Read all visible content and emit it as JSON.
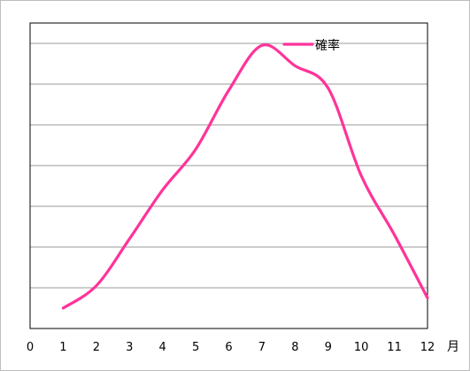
{
  "chart_data": {
    "type": "line",
    "x": [
      1,
      2,
      3,
      4,
      5,
      6,
      7,
      8,
      9,
      10,
      11,
      12
    ],
    "series": [
      {
        "name": "確率",
        "color": "#ff3399",
        "values": [
          0.5,
          1.05,
          2.2,
          3.4,
          4.4,
          5.85,
          6.95,
          6.45,
          5.9,
          3.75,
          2.3,
          0.75
        ]
      }
    ],
    "xlim": [
      0,
      12
    ],
    "ylim": [
      0,
      7.5
    ],
    "x_tick_labels": [
      "0",
      "1",
      "2",
      "3",
      "4",
      "5",
      "6",
      "7",
      "8",
      "9",
      "10",
      "11",
      "12"
    ],
    "x_unit": "月",
    "y_tick_labels_visible": false,
    "grid": true,
    "smooth": true,
    "legend": {
      "position": "top-right",
      "label": "確率"
    }
  }
}
